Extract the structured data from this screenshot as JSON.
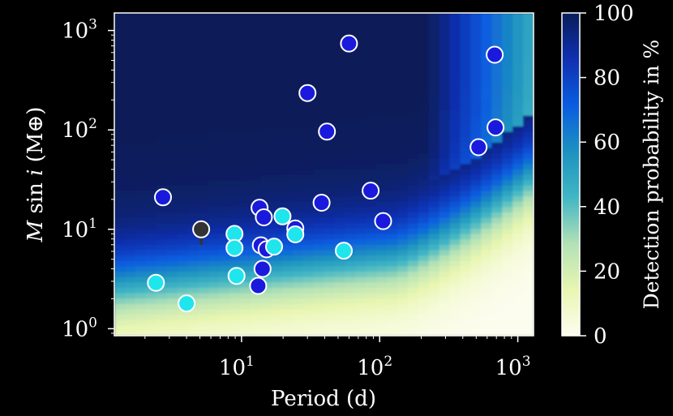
{
  "chart_data": {
    "type": "scatter",
    "title": "",
    "xlabel": "Period (d)",
    "ylabel": "M sin i (M⊕)",
    "ylabel_parts": {
      "m": "M",
      "sin": " sin ",
      "i": "i",
      "unit": " (M⊕)"
    },
    "x_scale": "log",
    "y_scale": "log",
    "xlim": [
      1.2,
      1300
    ],
    "ylim": [
      0.85,
      1500
    ],
    "x_ticks": [
      {
        "value": 10,
        "base": "10",
        "exp": "1"
      },
      {
        "value": 100,
        "base": "10",
        "exp": "2"
      },
      {
        "value": 1000,
        "base": "10",
        "exp": "3"
      }
    ],
    "y_ticks": [
      {
        "value": 1,
        "base": "10",
        "exp": "0"
      },
      {
        "value": 10,
        "base": "10",
        "exp": "1"
      },
      {
        "value": 100,
        "base": "10",
        "exp": "2"
      },
      {
        "value": 1000,
        "base": "10",
        "exp": "3"
      }
    ],
    "colorbar": {
      "label": "Detection probability in %",
      "range": [
        0,
        100
      ],
      "ticks": [
        "0",
        "20",
        "40",
        "60",
        "80",
        "100"
      ],
      "colormap": "YlGnBu",
      "stops": [
        "#fdfdf0",
        "#e8f6b1",
        "#b2e1b6",
        "#41b6c4",
        "#1d91c0",
        "#0a5ce0",
        "#1030b0",
        "#081d58"
      ]
    },
    "background": "detection-probability-heatmap",
    "series": [
      {
        "color": "#1a1adc",
        "points": [
          [
            2.7,
            21
          ],
          [
            13.5,
            16.5
          ],
          [
            14.5,
            13.2
          ],
          [
            24.5,
            10.2
          ],
          [
            38,
            18.5
          ],
          [
            86,
            24.5
          ],
          [
            13.8,
            6.9
          ],
          [
            15.2,
            6.3
          ],
          [
            14.2,
            4.0
          ],
          [
            13.2,
            2.7
          ],
          [
            106,
            12.1
          ],
          [
            30,
            235
          ],
          [
            41.5,
            96
          ],
          [
            60,
            740
          ],
          [
            520,
            67
          ],
          [
            690,
            106
          ],
          [
            680,
            570
          ]
        ]
      },
      {
        "color": "#1ee6ec",
        "points": [
          [
            2.4,
            2.9
          ],
          [
            4.0,
            1.8
          ],
          [
            9.2,
            3.4
          ],
          [
            8.9,
            9.0
          ],
          [
            8.9,
            6.5
          ],
          [
            17.2,
            6.7
          ],
          [
            19.8,
            13.5
          ],
          [
            24.5,
            8.9
          ],
          [
            55,
            6.1
          ]
        ]
      },
      {
        "color": "#333333",
        "points": [
          [
            5.1,
            10.0
          ]
        ],
        "error": [
          [
            7.0,
            12.0
          ]
        ]
      }
    ]
  }
}
